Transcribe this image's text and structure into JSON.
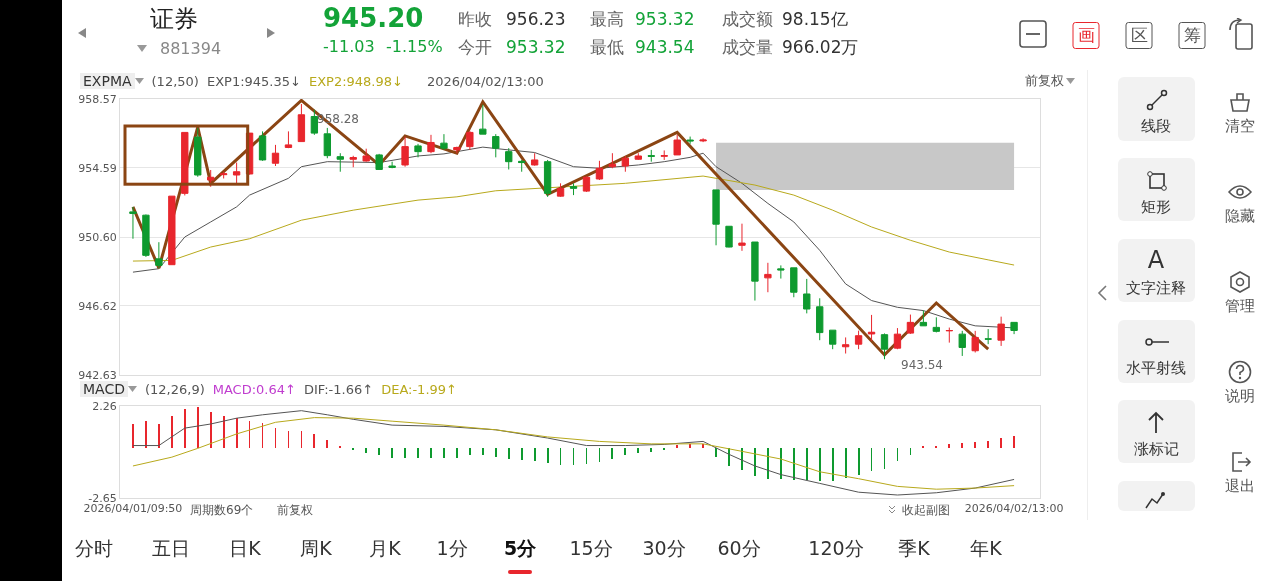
{
  "chart_data": [
    {
      "type": "other",
      "annotations": [
        "证券",
        "881394",
        "945.20",
        "-11.03",
        "-1.15%",
        "昨收",
        "956.23",
        "今开",
        "953.32",
        "最高",
        "953.32",
        "最低",
        "943.54",
        "成交额",
        "98.15亿",
        "成交量",
        "966.02万",
        "画",
        "区",
        "筹"
      ]
    },
    {
      "type": "candlestick",
      "title": "EXPMA",
      "subtitle": "(12,50)",
      "legend": "top left",
      "grid": "y",
      "tick_labels": "y",
      "categories": [
        null,
        null,
        null,
        null,
        null,
        null,
        null,
        null,
        null,
        null,
        null,
        null,
        null,
        null,
        null,
        null,
        null,
        null,
        null,
        null,
        null,
        null,
        null,
        null,
        null,
        null,
        null,
        null,
        null,
        null,
        null,
        null,
        null,
        null,
        null,
        null,
        null,
        null,
        null,
        null,
        null,
        null,
        null,
        null,
        null,
        null,
        null,
        null,
        null,
        null,
        null,
        null,
        null,
        null,
        null,
        null,
        null,
        null,
        null,
        null,
        null,
        null,
        null,
        null,
        null,
        null,
        null,
        null,
        null
      ],
      "ohlc": [
        [
          952.05,
          952.34,
          950.5,
          951.96
        ],
        [
          951.86,
          951.9,
          949.45,
          949.54
        ],
        [
          949.34,
          950.3,
          948.8,
          948.96
        ],
        [
          949.0,
          952.96,
          949.0,
          952.96
        ],
        [
          953.12,
          956.64,
          953.0,
          956.64
        ],
        [
          956.37,
          956.9,
          954.08,
          954.18
        ],
        [
          953.89,
          954.47,
          953.5,
          954.05
        ],
        [
          954.2,
          954.37,
          953.98,
          954.25
        ],
        [
          954.18,
          954.9,
          953.7,
          954.37
        ],
        [
          954.24,
          956.6,
          954.2,
          956.6
        ],
        [
          956.44,
          956.7,
          955.0,
          955.05
        ],
        [
          954.86,
          955.92,
          954.7,
          955.44
        ],
        [
          955.77,
          956.7,
          955.73,
          955.92
        ],
        [
          956.11,
          958.28,
          956.11,
          957.66
        ],
        [
          957.56,
          957.95,
          956.5,
          956.6
        ],
        [
          956.56,
          956.9,
          955.15,
          955.3
        ],
        [
          955.24,
          955.44,
          954.37,
          955.09
        ],
        [
          955.09,
          955.29,
          954.63,
          955.19
        ],
        [
          954.99,
          955.7,
          954.95,
          955.28
        ],
        [
          955.34,
          955.4,
          954.5,
          954.5
        ],
        [
          954.7,
          954.95,
          954.57,
          954.62
        ],
        [
          954.76,
          956.4,
          954.66,
          955.82
        ],
        [
          955.86,
          955.98,
          955.2,
          955.53
        ],
        [
          955.53,
          956.5,
          955.44,
          956.06
        ],
        [
          956.02,
          956.54,
          955.63,
          955.73
        ],
        [
          955.63,
          955.82,
          955.44,
          955.77
        ],
        [
          955.82,
          956.73,
          955.63,
          956.64
        ],
        [
          956.83,
          958.24,
          956.54,
          956.54
        ],
        [
          956.4,
          956.54,
          955.2,
          955.73
        ],
        [
          955.53,
          955.73,
          954.5,
          954.95
        ],
        [
          954.97,
          955.05,
          954.37,
          954.9
        ],
        [
          954.76,
          955.44,
          954.72,
          955.05
        ],
        [
          954.95,
          955.05,
          952.92,
          953.12
        ],
        [
          952.96,
          953.7,
          952.92,
          953.41
        ],
        [
          953.51,
          953.7,
          953.02,
          953.41
        ],
        [
          953.25,
          954.1,
          953.2,
          954.05
        ],
        [
          953.95,
          955.0,
          953.89,
          954.57
        ],
        [
          954.66,
          955.44,
          954.57,
          954.8
        ],
        [
          954.7,
          955.28,
          954.37,
          955.15
        ],
        [
          955.09,
          955.44,
          955.05,
          955.28
        ],
        [
          955.3,
          955.63,
          954.95,
          955.26
        ],
        [
          955.26,
          955.6,
          955.05,
          955.3
        ],
        [
          955.34,
          956.5,
          955.34,
          956.2
        ],
        [
          956.2,
          956.4,
          955.98,
          956.15
        ],
        [
          956.15,
          956.3,
          956.08,
          956.2
        ],
        [
          953.32,
          953.32,
          950.12,
          951.34
        ],
        [
          951.22,
          951.22,
          950.0,
          950.02
        ],
        [
          950.12,
          951.37,
          949.8,
          950.25
        ],
        [
          950.31,
          950.31,
          946.93,
          948.05
        ],
        [
          948.24,
          949.11,
          947.41,
          948.44
        ],
        [
          948.76,
          948.96,
          948.2,
          948.7
        ],
        [
          948.82,
          948.82,
          947.12,
          947.41
        ],
        [
          947.31,
          948.18,
          946.19,
          946.44
        ],
        [
          946.57,
          947.06,
          944.64,
          945.08
        ],
        [
          945.22,
          945.22,
          944.12,
          944.41
        ],
        [
          944.26,
          944.8,
          943.87,
          944.38
        ],
        [
          944.41,
          945.19,
          944.12,
          944.9
        ],
        [
          945.0,
          946.1,
          944.6,
          945.1
        ],
        [
          944.96,
          945.03,
          943.54,
          944.12
        ],
        [
          944.18,
          945.34,
          944.12,
          944.99
        ],
        [
          945.05,
          946.12,
          945.0,
          945.67
        ],
        [
          945.67,
          946.35,
          945.47,
          945.47
        ],
        [
          945.38,
          945.96,
          945.09,
          945.15
        ],
        [
          945.18,
          945.37,
          944.5,
          945.2
        ],
        [
          944.99,
          945.18,
          943.73,
          944.22
        ],
        [
          944.03,
          945.18,
          943.93,
          944.8
        ],
        [
          944.72,
          945.28,
          944.41,
          944.7
        ],
        [
          944.64,
          946.0,
          944.31,
          945.57
        ],
        [
          945.67,
          945.67,
          944.99,
          945.2
        ]
      ],
      "colors": [
        "#0e9a2f",
        "#0e9a2f",
        "#0e9a2f",
        "#e8262d",
        "#e8262d",
        "#0e9a2f",
        "#e8262d",
        "#e8262d",
        "#e8262d",
        "#e8262d",
        "#0e9a2f",
        "#e8262d",
        "#e8262d",
        "#e8262d",
        "#0e9a2f",
        "#0e9a2f",
        "#0e9a2f",
        "#e8262d",
        "#e8262d",
        "#0e9a2f",
        "#0e9a2f",
        "#e8262d",
        "#0e9a2f",
        "#e8262d",
        "#0e9a2f",
        "#e8262d",
        "#e8262d",
        "#0e9a2f",
        "#0e9a2f",
        "#0e9a2f",
        "#0e9a2f",
        "#e8262d",
        "#0e9a2f",
        "#e8262d",
        "#0e9a2f",
        "#e8262d",
        "#e8262d",
        "#e8262d",
        "#e8262d",
        "#e8262d",
        "#0e9a2f",
        "#e8262d",
        "#e8262d",
        "#0e9a2f",
        "#e8262d",
        "#0e9a2f",
        "#0e9a2f",
        "#e8262d",
        "#0e9a2f",
        "#e8262d",
        "#0e9a2f",
        "#0e9a2f",
        "#0e9a2f",
        "#0e9a2f",
        "#0e9a2f",
        "#e8262d",
        "#e8262d",
        "#e8262d",
        "#0e9a2f",
        "#e8262d",
        "#e8262d",
        "#0e9a2f",
        "#0e9a2f",
        "#e8262d",
        "#0e9a2f",
        "#e8262d",
        "#0e9a2f",
        "#e8262d",
        "#0e9a2f"
      ],
      "series": [
        {
          "type": "area",
          "color": "#c8c8c8",
          "values": [
            null,
            null,
            null,
            null,
            null,
            null,
            null,
            null,
            null,
            null,
            null,
            null,
            null,
            null,
            null,
            null,
            null,
            null,
            null,
            null,
            null,
            null,
            null,
            null,
            null,
            null,
            null,
            null,
            null,
            null,
            null,
            null,
            null,
            null,
            null,
            null,
            null,
            null,
            null,
            null,
            null,
            null,
            null,
            null,
            null,
            null,
            null,
            null,
            null,
            null,
            null,
            null,
            null,
            null,
            null,
            null,
            null,
            null,
            null,
            null,
            null,
            null,
            null,
            null,
            null,
            null,
            null,
            null,
            null
          ],
          "upper": [
            null,
            null,
            null,
            null,
            null,
            null,
            null,
            null,
            null,
            null,
            null,
            null,
            null,
            null,
            null,
            null,
            null,
            null,
            null,
            null,
            null,
            null,
            null,
            null,
            null,
            null,
            null,
            null,
            null,
            null,
            null,
            null,
            null,
            null,
            null,
            null,
            null,
            null,
            null,
            null,
            null,
            null,
            null,
            null,
            null,
            956.04,
            956.04,
            956.04,
            956.04,
            956.04,
            956.04,
            956.04,
            956.04,
            956.04,
            956.04,
            956.04,
            956.04,
            956.04,
            956.04,
            956.04,
            956.04,
            956.04,
            956.04,
            956.04,
            956.04,
            956.04,
            956.04,
            956.04,
            956.04
          ],
          "lower": [
            null,
            null,
            null,
            null,
            null,
            null,
            null,
            null,
            null,
            null,
            null,
            null,
            null,
            null,
            null,
            null,
            null,
            null,
            null,
            null,
            null,
            null,
            null,
            null,
            null,
            null,
            null,
            null,
            null,
            null,
            null,
            null,
            null,
            null,
            null,
            null,
            null,
            null,
            null,
            null,
            null,
            null,
            null,
            null,
            null,
            953.31,
            953.31,
            953.31,
            953.31,
            953.31,
            953.31,
            953.31,
            953.31,
            953.31,
            953.31,
            953.31,
            953.31,
            953.31,
            953.31,
            953.31,
            953.31,
            953.31,
            953.31,
            953.31,
            953.31,
            953.31,
            953.31,
            953.31,
            953.31
          ]
        },
        {
          "type": "line",
          "name": "EXP1:945.35↓",
          "color": "#555555",
          "values": [
            948.57,
            null,
            948.77,
            null,
            950.6,
            null,
            951.47,
            null,
            952.34,
            953.02,
            null,
            null,
            953.99,
            954.66,
            null,
            954.95,
            null,
            null,
            null,
            954.9,
            null,
            null,
            955.28,
            null,
            955.4,
            null,
            null,
            955.79,
            null,
            955.63,
            null,
            955.48,
            null,
            null,
            954.66,
            null,
            954.57,
            null,
            null,
            954.76,
            null,
            954.95,
            null,
            955.2,
            955.44,
            954.66,
            null,
            953.7,
            null,
            952.54,
            null,
            951.47,
            null,
            949.83,
            null,
            947.89,
            null,
            946.93,
            null,
            946.54,
            null,
            946.35,
            null,
            945.86,
            null,
            945.47,
            null,
            null,
            945.35
          ]
        },
        {
          "type": "line",
          "name": "EXP2:948.98↓",
          "color": "#b8a91c",
          "values": [
            949.21,
            null,
            null,
            949.25,
            null,
            null,
            950.02,
            null,
            null,
            950.5,
            null,
            null,
            null,
            951.57,
            null,
            null,
            null,
            952.15,
            null,
            null,
            null,
            null,
            952.73,
            null,
            null,
            952.92,
            null,
            null,
            953.27,
            null,
            null,
            null,
            null,
            null,
            null,
            null,
            null,
            null,
            953.7,
            null,
            null,
            null,
            null,
            null,
            954.12,
            953.99,
            null,
            null,
            953.6,
            null,
            null,
            953.02,
            null,
            null,
            952.15,
            null,
            null,
            951.18,
            null,
            null,
            950.41,
            null,
            null,
            949.73,
            null,
            null,
            949.28,
            null,
            948.98
          ]
        },
        {
          "type": "line",
          "color": "#8b4513",
          "values": [
            952.34,
            null,
            948.8,
            null,
            null,
            956.95,
            953.7,
            null,
            null,
            null,
            null,
            null,
            null,
            958.49,
            null,
            null,
            null,
            null,
            null,
            954.76,
            null,
            956.44,
            null,
            null,
            null,
            955.44,
            null,
            958.4,
            null,
            null,
            null,
            null,
            953.06,
            null,
            null,
            null,
            null,
            null,
            null,
            null,
            null,
            null,
            956.64,
            null,
            null,
            null,
            null,
            null,
            null,
            null,
            null,
            null,
            null,
            null,
            null,
            null,
            null,
            null,
            943.79,
            null,
            null,
            null,
            946.79,
            null,
            null,
            null,
            944.12,
            null,
            null
          ]
        }
      ],
      "ylim": [
        942.63,
        958.57
      ],
      "yticks": [
        958.57,
        954.59,
        {
          "value": 950.6,
          "label": "950.60"
        },
        946.62,
        942.63
      ],
      "annotations": [
        "2026/04/02/13:00",
        "前复权",
        "958.28",
        "943.54"
      ]
    },
    {
      "type": "bar",
      "title": "MACD",
      "subtitle": "(12,26,9)",
      "legend": "top left",
      "categories": [
        "2026/04/01/09:50",
        null,
        null,
        null,
        null,
        null,
        null,
        null,
        null,
        null,
        null,
        null,
        null,
        null,
        null,
        null,
        null,
        null,
        null,
        null,
        null,
        null,
        null,
        null,
        null,
        null,
        null,
        null,
        null,
        null,
        null,
        null,
        null,
        null,
        null,
        null,
        null,
        null,
        null,
        null,
        null,
        null,
        null,
        null,
        null,
        null,
        null,
        null,
        null,
        null,
        null,
        null,
        null,
        null,
        null,
        null,
        null,
        null,
        null,
        null,
        null,
        null,
        null,
        null,
        null,
        null,
        null,
        null,
        "2026/04/02/13:00"
      ],
      "series": [
        {
          "type": "bar",
          "name": "MACD:0.64↑",
          "color": "#c03ccf",
          "colors": [
            "#e8262d",
            "#e8262d",
            "#e8262d",
            "#e8262d",
            "#e8262d",
            "#e8262d",
            "#e8262d",
            "#e8262d",
            "#e8262d",
            "#e8262d",
            "#e8262d",
            "#e8262d",
            "#e8262d",
            "#e8262d",
            "#e8262d",
            "#e8262d",
            "#e8262d",
            "#0e9a2f",
            "#0e9a2f",
            "#0e9a2f",
            "#0e9a2f",
            "#0e9a2f",
            "#0e9a2f",
            "#0e9a2f",
            "#0e9a2f",
            "#0e9a2f",
            "#0e9a2f",
            "#0e9a2f",
            "#0e9a2f",
            "#0e9a2f",
            "#0e9a2f",
            "#0e9a2f",
            "#0e9a2f",
            "#0e9a2f",
            "#0e9a2f",
            "#0e9a2f",
            "#0e9a2f",
            "#0e9a2f",
            "#0e9a2f",
            "#0e9a2f",
            "#0e9a2f",
            "#0e9a2f",
            "#e8262d",
            "#e8262d",
            "#e8262d",
            "#0e9a2f",
            "#0e9a2f",
            "#0e9a2f",
            "#0e9a2f",
            "#0e9a2f",
            "#0e9a2f",
            "#0e9a2f",
            "#0e9a2f",
            "#0e9a2f",
            "#0e9a2f",
            "#0e9a2f",
            "#0e9a2f",
            "#0e9a2f",
            "#0e9a2f",
            "#0e9a2f",
            "#0e9a2f",
            "#e8262d",
            "#e8262d",
            "#e8262d",
            "#e8262d",
            "#e8262d",
            "#e8262d",
            "#e8262d",
            "#e8262d"
          ],
          "values": [
            1.3,
            1.48,
            1.3,
            1.7,
            2.1,
            2.23,
            1.92,
            1.7,
            1.61,
            1.48,
            1.36,
            1.08,
            0.92,
            0.92,
            0.77,
            0.46,
            0.15,
            -0.1,
            -0.25,
            -0.38,
            -0.54,
            -0.54,
            -0.5,
            -0.5,
            -0.5,
            -0.5,
            -0.38,
            -0.38,
            -0.47,
            -0.57,
            -0.63,
            -0.69,
            -0.78,
            -0.88,
            -0.88,
            -0.85,
            -0.72,
            -0.57,
            -0.38,
            -0.25,
            -0.19,
            -0.1,
            0.18,
            0.21,
            0.21,
            -0.47,
            -0.94,
            -1.13,
            -1.47,
            -1.62,
            -1.62,
            -1.68,
            -1.68,
            -1.75,
            -1.75,
            -1.56,
            -1.4,
            -1.19,
            -1.09,
            -0.69,
            -0.38,
            0.15,
            0.15,
            0.24,
            0.3,
            0.33,
            0.4,
            0.55,
            0.64
          ]
        },
        {
          "type": "line",
          "name": "DIF:-1.66↑",
          "color": "#555555",
          "values": [
            0.15,
            null,
            0.15,
            null,
            1.08,
            null,
            1.3,
            null,
            1.61,
            null,
            1.79,
            null,
            null,
            2.01,
            null,
            1.79,
            null,
            1.55,
            null,
            null,
            1.24,
            null,
            null,
            null,
            1.17,
            null,
            null,
            null,
            0.99,
            null,
            null,
            null,
            0.55,
            null,
            null,
            0.15,
            null,
            null,
            0.15,
            null,
            null,
            0.21,
            null,
            null,
            0.37,
            null,
            -0.32,
            null,
            -0.94,
            null,
            -1.4,
            null,
            null,
            -1.87,
            null,
            null,
            -2.34,
            null,
            null,
            -2.49,
            null,
            null,
            -2.37,
            null,
            null,
            -2.12,
            null,
            null,
            -1.66
          ]
        },
        {
          "type": "line",
          "name": "DEA:-1.99↑",
          "color": "#b8a91c",
          "values": [
            -0.94,
            null,
            null,
            -0.47,
            null,
            0,
            null,
            null,
            0.77,
            null,
            null,
            1.39,
            null,
            null,
            1.64,
            null,
            null,
            1.61,
            null,
            null,
            1.45,
            null,
            null,
            null,
            1.24,
            null,
            null,
            null,
            0.99,
            null,
            null,
            null,
            0.61,
            null,
            null,
            null,
            0.37,
            null,
            null,
            null,
            0.24,
            null,
            null,
            null,
            0.24,
            null,
            null,
            -0.16,
            null,
            null,
            -0.57,
            null,
            null,
            -1.25,
            null,
            null,
            -1.62,
            null,
            null,
            -2.03,
            null,
            null,
            -2.18,
            null,
            null,
            -2.12,
            null,
            null,
            -1.99
          ]
        }
      ],
      "ylim": [
        -2.65,
        2.26
      ],
      "yticks": [
        2.26,
        -2.65
      ],
      "annotations": [
        "周期数69个",
        "前复权",
        "收起副图"
      ]
    },
    {
      "type": "other",
      "annotations": [
        "线段",
        "矩形",
        "A",
        "文字注释",
        "水平射线",
        "涨标记",
        "清空",
        "隐藏",
        "管理",
        "说明",
        "退出"
      ]
    },
    {
      "type": "other",
      "annotations": [
        "分时",
        "五日",
        "日K",
        "周K",
        "月K",
        "1分",
        "5分",
        "15分",
        "30分",
        "60分",
        "120分",
        "季K",
        "年K"
      ]
    }
  ]
}
